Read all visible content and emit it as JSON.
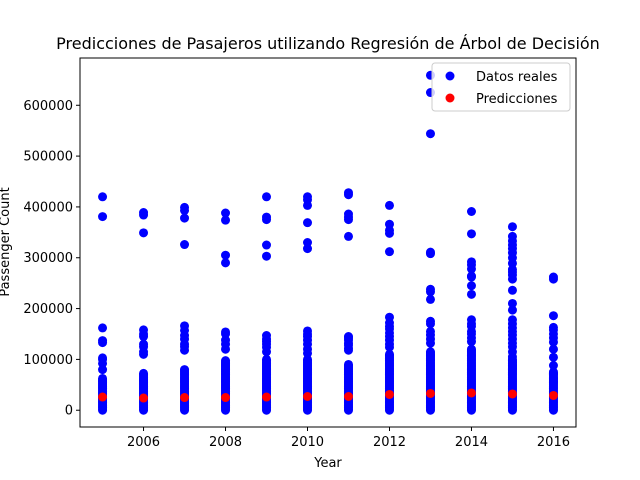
{
  "chart_data": {
    "type": "scatter",
    "title": "Predicciones de Pasajeros utilizando Regresión de Árbol de Decisión",
    "xlabel": "Year",
    "ylabel": "Passenger Count",
    "xlim": [
      2004.45,
      2016.55
    ],
    "ylim": [
      -33000,
      693000
    ],
    "xticks": [
      2006,
      2008,
      2010,
      2012,
      2014,
      2016
    ],
    "yticks": [
      0,
      100000,
      200000,
      300000,
      400000,
      500000,
      600000
    ],
    "xtick_labels": [
      "2006",
      "2008",
      "2010",
      "2012",
      "2014",
      "2016"
    ],
    "ytick_labels": [
      "0",
      "100000",
      "200000",
      "300000",
      "400000",
      "500000",
      "600000"
    ],
    "grid": false,
    "legend_position": "top-right",
    "series": [
      {
        "name": "Datos reales",
        "color": "#0000ff",
        "dense_band_max": [
          64000,
          73000,
          80000,
          98000,
          100000,
          102000,
          92000,
          110000,
          115000,
          122000,
          100000,
          75000
        ],
        "points": [
          {
            "x": 2005,
            "y": [
              420000,
              381000,
              162000,
              137000,
              133000,
              103000,
              100000,
              92000,
              80000
            ]
          },
          {
            "x": 2006,
            "y": [
              389000,
              384000,
              349000,
              158000,
              150000,
              145000,
              130000,
              125000,
              115000,
              110000
            ]
          },
          {
            "x": 2007,
            "y": [
              399000,
              393000,
              378000,
              326000,
              166000,
              157000,
              147000,
              140000,
              130000,
              125000,
              118000
            ]
          },
          {
            "x": 2008,
            "y": [
              388000,
              374000,
              305000,
              290000,
              154000,
              150000,
              138000,
              130000,
              120000
            ]
          },
          {
            "x": 2009,
            "y": [
              420000,
              380000,
              375000,
              325000,
              303000,
              147000,
              140000,
              135000,
              130000,
              124000,
              115000
            ]
          },
          {
            "x": 2010,
            "y": [
              420000,
              414000,
              403000,
              369000,
              330000,
              318000,
              156000,
              150000,
              145000,
              138000,
              130000,
              120000,
              112000
            ]
          },
          {
            "x": 2011,
            "y": [
              428000,
              424000,
              386000,
              380000,
              375000,
              342000,
              145000,
              142000,
              138000,
              132000,
              128000,
              122000,
              118000
            ]
          },
          {
            "x": 2012,
            "y": [
              403000,
              366000,
              354000,
              348000,
              312000,
              183000,
              172000,
              165000,
              160000,
              152000,
              145000,
              138000,
              130000,
              124000
            ]
          },
          {
            "x": 2013,
            "y": [
              659000,
              625000,
              544000,
              311000,
              308000,
              238000,
              233000,
              218000,
              175000,
              170000,
              155000,
              148000,
              140000,
              132000
            ]
          },
          {
            "x": 2014,
            "y": [
              391000,
              347000,
              292000,
              286000,
              278000,
              264000,
              262000,
              245000,
              228000,
              178000,
              170000,
              165000,
              155000,
              150000,
              142000,
              135000
            ]
          },
          {
            "x": 2015,
            "y": [
              361000,
              342000,
              333000,
              325000,
              318000,
              310000,
              300000,
              289000,
              277000,
              272000,
              266000,
              258000,
              236000,
              210000,
              197000,
              178000,
              170000,
              162000,
              155000,
              148000,
              140000,
              132000,
              125000,
              115000,
              105000,
              95000,
              88000,
              82000
            ]
          },
          {
            "x": 2016,
            "y": [
              262000,
              258000,
              186000,
              163000,
              158000,
              150000,
              142000,
              134000,
              120000,
              104000,
              88000,
              72000,
              63000,
              55000
            ]
          }
        ]
      },
      {
        "name": "Predicciones",
        "color": "#ff0000",
        "points": [
          {
            "x": 2005,
            "y": 26000
          },
          {
            "x": 2006,
            "y": 24000
          },
          {
            "x": 2007,
            "y": 25000
          },
          {
            "x": 2008,
            "y": 25000
          },
          {
            "x": 2009,
            "y": 26000
          },
          {
            "x": 2010,
            "y": 27000
          },
          {
            "x": 2011,
            "y": 27000
          },
          {
            "x": 2012,
            "y": 31000
          },
          {
            "x": 2013,
            "y": 33000
          },
          {
            "x": 2014,
            "y": 34000
          },
          {
            "x": 2015,
            "y": 32000
          },
          {
            "x": 2016,
            "y": 29000
          }
        ]
      }
    ]
  }
}
